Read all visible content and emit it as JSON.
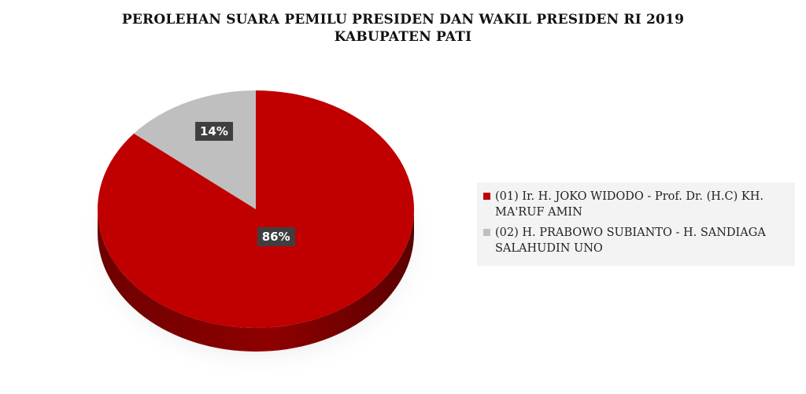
{
  "chart_data": {
    "type": "pie",
    "title_lines": [
      "PEROLEHAN SUARA PEMILU PRESIDEN DAN WAKIL PRESIDEN RI 2019",
      "KABUPATEN PATI"
    ],
    "slices": [
      {
        "label": "(01) Ir. H. JOKO WIDODO - Prof. Dr. (H.C) KH. MA'RUF AMIN",
        "value": 86,
        "display": "86%",
        "color": "#c00000",
        "side_color": "#7a0000"
      },
      {
        "label": "(02) H. PRABOWO SUBIANTO - H. SANDIAGA SALAHUDIN UNO",
        "value": 14,
        "display": "14%",
        "color": "#bfbfbf",
        "side_color": "#8c8c8c"
      }
    ],
    "legend_position": "right",
    "style": "3d"
  }
}
